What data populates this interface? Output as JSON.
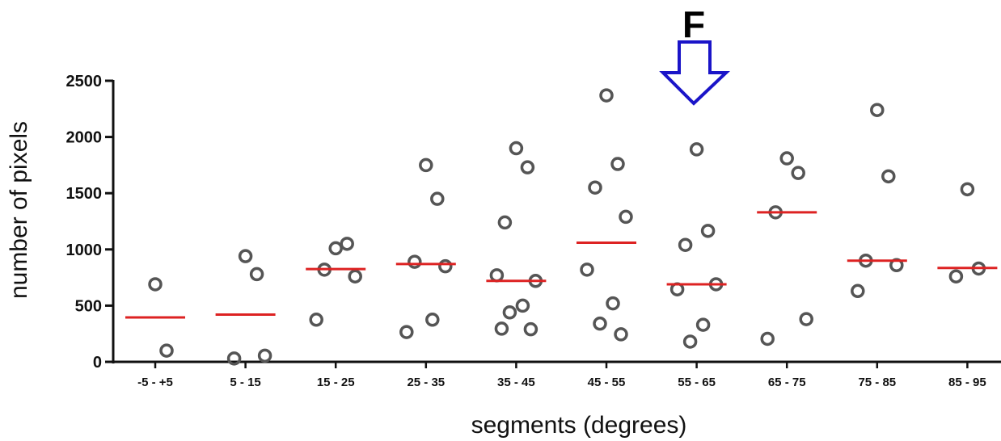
{
  "chart_data": {
    "type": "scatter",
    "title": "",
    "xlabel": "segments (degrees)",
    "ylabel": "number of pixels",
    "ylim": [
      0,
      2500
    ],
    "yticks": [
      0,
      500,
      1000,
      1500,
      2000,
      2500
    ],
    "grid": false,
    "legend": "none",
    "categories": [
      "-5 - +5",
      "5 - 15",
      "15 - 25",
      "25 - 35",
      "35 - 45",
      "45 - 55",
      "55 - 65",
      "65 - 75",
      "75 - 85",
      "85 - 95"
    ],
    "points": [
      [
        690,
        100
      ],
      [
        940,
        780,
        30,
        55
      ],
      [
        1010,
        1050,
        820,
        760,
        375
      ],
      [
        1750,
        1450,
        890,
        850,
        265,
        375
      ],
      [
        1900,
        1730,
        1240,
        720,
        770,
        500,
        440,
        290,
        295
      ],
      [
        2370,
        1760,
        1550,
        1290,
        820,
        520,
        340,
        245
      ],
      [
        1890,
        1165,
        1040,
        690,
        645,
        330,
        180
      ],
      [
        1810,
        1680,
        1330,
        380,
        205
      ],
      [
        2240,
        1650,
        900,
        860,
        630
      ],
      [
        1535,
        830,
        760
      ]
    ],
    "medians": [
      395,
      420,
      825,
      870,
      720,
      1060,
      690,
      1330,
      900,
      835
    ],
    "annotation": {
      "text": "F",
      "category": "55 - 65",
      "marker": "down-arrow"
    },
    "colors": {
      "points": "#555555",
      "median": "#dd2222",
      "arrow": "#1a14c8",
      "axis": "#111111"
    }
  }
}
